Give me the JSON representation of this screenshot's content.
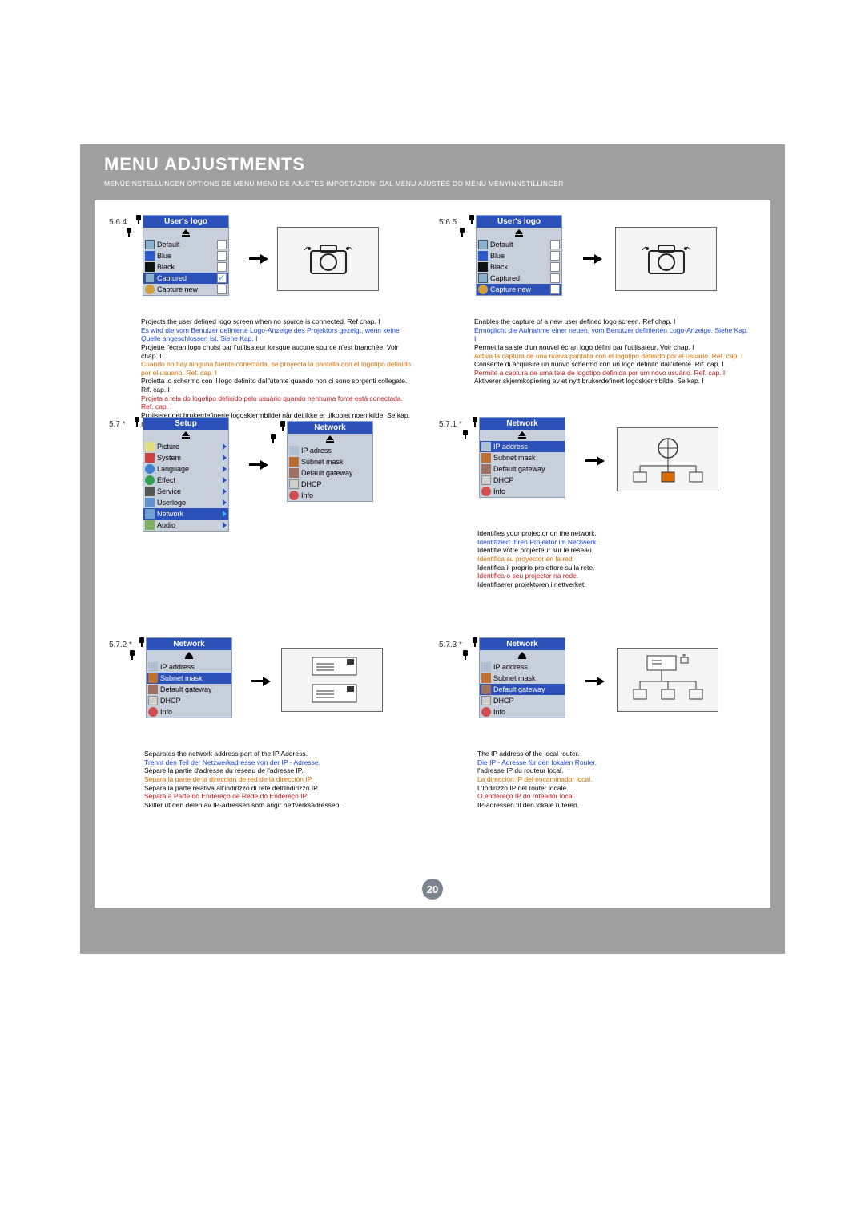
{
  "heading": "MENU ADJUSTMENTS",
  "subheading": "MENÜEINSTELLUNGEN   OPTIONS DE MENU   MENÚ DE AJUSTES   IMPOSTAZIONI DAL MENU   AJUSTES DO MENU   MENYINNSTILLINGER",
  "page_number": "20",
  "colors": {
    "header_bg": "#a0a0a0",
    "menu_title_bg": "#2b50b7",
    "de": "#1846d8",
    "es": "#d86c00",
    "pt": "#c01717"
  },
  "sections": {
    "s564": {
      "num": "5.6.4",
      "menu_title": "User's logo",
      "items": [
        {
          "label": "Default",
          "icon": "ic-screen"
        },
        {
          "label": "Blue",
          "swatch": "sw-blue"
        },
        {
          "label": "Black",
          "swatch": "sw-black"
        },
        {
          "label": "Captured",
          "icon": "ic-screen",
          "sel": true,
          "checked": true
        },
        {
          "label": "Capture new",
          "icon": "ic-reload"
        }
      ],
      "desc": {
        "en": "Projects the user defined logo screen when no source is connected. Ref chap. I",
        "de": "Es wird die vom Benutzer definierte Logo-Anzeige des Projektors gezeigt, wenn keine Quelle angeschlossen ist. Siehe Kap. I",
        "fr": "Projette l'écran logo choisi par l'utilisateur lorsque aucune source n'est branchée. Voir chap. I",
        "es": "Cuando no hay ninguna fuente conectada, se proyecta la pantalla con el logotipo definido por el usuario. Ref. cap. I",
        "it": "Proietta lo schermo con il logo definito dall'utente quando non ci sono sorgenti collegate. Rif. cap. I",
        "pt": "Projeta a tela do logotipo definido pelo usuário quando nenhuma fonte está conectada. Ref. cap. I",
        "no": "Projiserer det brukerdefinerte logoskjermbildet når det ikke er tilkoblet noen kilde. Se kap. I"
      }
    },
    "s565": {
      "num": "5.6.5",
      "menu_title": "User's logo",
      "items": [
        {
          "label": "Default",
          "icon": "ic-screen"
        },
        {
          "label": "Blue",
          "swatch": "sw-blue"
        },
        {
          "label": "Black",
          "swatch": "sw-black"
        },
        {
          "label": "Captured",
          "icon": "ic-screen"
        },
        {
          "label": "Capture new",
          "icon": "ic-reload",
          "sel": true
        }
      ],
      "desc": {
        "en": "Enables the capture of a new user defined logo screen. Ref chap. I",
        "de": "Ermöglicht die Aufnahme einer neuen, vom Benutzer definierten Logo-Anzeige. Siehe Kap. I",
        "fr": "Permet la saisie d'un nouvel écran logo défini par l'utilisateur. Voir chap. I",
        "es": "Activa la captura de una nueva pantalla con el logotipo definido por el usuario. Ref. cap. I",
        "it": "Consente di acquisire un nuovo schermo con un logo definito dall'utente. Rif. cap. I",
        "pt": "Permite a captura de uma tela de logotipo definida por um novo usuário. Ref. cap. I",
        "no": "Aktiverer skjermkopiering av et nytt brukerdefinert logoskjermbilde. Se kap. I"
      }
    },
    "s57": {
      "num": "5.7 *",
      "menu_title": "Setup",
      "items": [
        {
          "label": "Picture",
          "icon": "ic-pic",
          "arrow": true
        },
        {
          "label": "System",
          "icon": "ic-sys",
          "arrow": true
        },
        {
          "label": "Language",
          "icon": "ic-lang",
          "arrow": true
        },
        {
          "label": "Effect",
          "icon": "ic-eff",
          "arrow": true
        },
        {
          "label": "Service",
          "icon": "ic-srv",
          "arrow": true
        },
        {
          "label": "Userlogo",
          "icon": "ic-ulogo",
          "arrow": true
        },
        {
          "label": "Network",
          "icon": "ic-net",
          "arrow": true,
          "sel": true
        },
        {
          "label": "Audio",
          "icon": "ic-audio",
          "arrow": true
        }
      ],
      "sub_title": "Network",
      "sub_items": [
        {
          "label": "IP adress",
          "icon": "ic-ip"
        },
        {
          "label": "Subnet mask",
          "icon": "ic-mask"
        },
        {
          "label": "Default gateway",
          "icon": "ic-gw"
        },
        {
          "label": "DHCP",
          "icon": "ic-dhcp"
        },
        {
          "label": "Info",
          "icon": "ic-info"
        }
      ]
    },
    "s571": {
      "num": "5.7.1 *",
      "menu_title": "Network",
      "items": [
        {
          "label": "IP address",
          "icon": "ic-ip",
          "sel": true
        },
        {
          "label": "Subnet mask",
          "icon": "ic-mask"
        },
        {
          "label": "Default gateway",
          "icon": "ic-gw"
        },
        {
          "label": "DHCP",
          "icon": "ic-dhcp"
        },
        {
          "label": "Info",
          "icon": "ic-info"
        }
      ],
      "desc": {
        "en": "Identifies your projector on the network.",
        "de": "Identifiziert Ihren Projektor im Netzwerk.",
        "fr": "Identifie votre projecteur sur le réseau.",
        "es": "Identifica su proyector en la red.",
        "it": "Identifica il proprio proiettore sulla rete.",
        "pt": "Identifica o seu projector na rede.",
        "no": "Identifiserer projektoren i nettverket."
      }
    },
    "s572": {
      "num": "5.7.2 *",
      "menu_title": "Network",
      "items": [
        {
          "label": "IP address",
          "icon": "ic-ip"
        },
        {
          "label": "Subnet mask",
          "icon": "ic-mask",
          "sel": true
        },
        {
          "label": "Default gateway",
          "icon": "ic-gw"
        },
        {
          "label": "DHCP",
          "icon": "ic-dhcp"
        },
        {
          "label": "Info",
          "icon": "ic-info"
        }
      ],
      "desc": {
        "en": "Separates the network address part of the IP Address.",
        "de": "Trennt den Teil der Netzwerkadresse von der IP - Adresse.",
        "fr": "Sépare la partie d'adresse du réseau de l'adresse IP.",
        "es": "Separa la parte de la dirección de red de la dirección IP.",
        "it": "Separa la parte relativa all'indirizzo di rete dell'Indirizzo IP.",
        "pt": "Separa a Parte do Endereço de Rede do Endereço IP.",
        "no": "Skiller ut den delen av IP-adressen som angir nettverksadressen."
      }
    },
    "s573": {
      "num": "5.7.3 *",
      "menu_title": "Network",
      "items": [
        {
          "label": "IP address",
          "icon": "ic-ip"
        },
        {
          "label": "Subnet mask",
          "icon": "ic-mask"
        },
        {
          "label": "Default gateway",
          "icon": "ic-gw",
          "sel": true
        },
        {
          "label": "DHCP",
          "icon": "ic-dhcp"
        },
        {
          "label": "Info",
          "icon": "ic-info"
        }
      ],
      "desc": {
        "en": "The IP address of the local router.",
        "de": "Die IP - Adresse für den lokalen Router.",
        "fr": "l'adresse IP du routeur local.",
        "es": "La dirección IP del encaminador local.",
        "it": "L'Indirizzo IP del router locale.",
        "pt": "O endereço IP do roteador local.",
        "no": "IP-adressen til den lokale ruteren."
      }
    }
  }
}
